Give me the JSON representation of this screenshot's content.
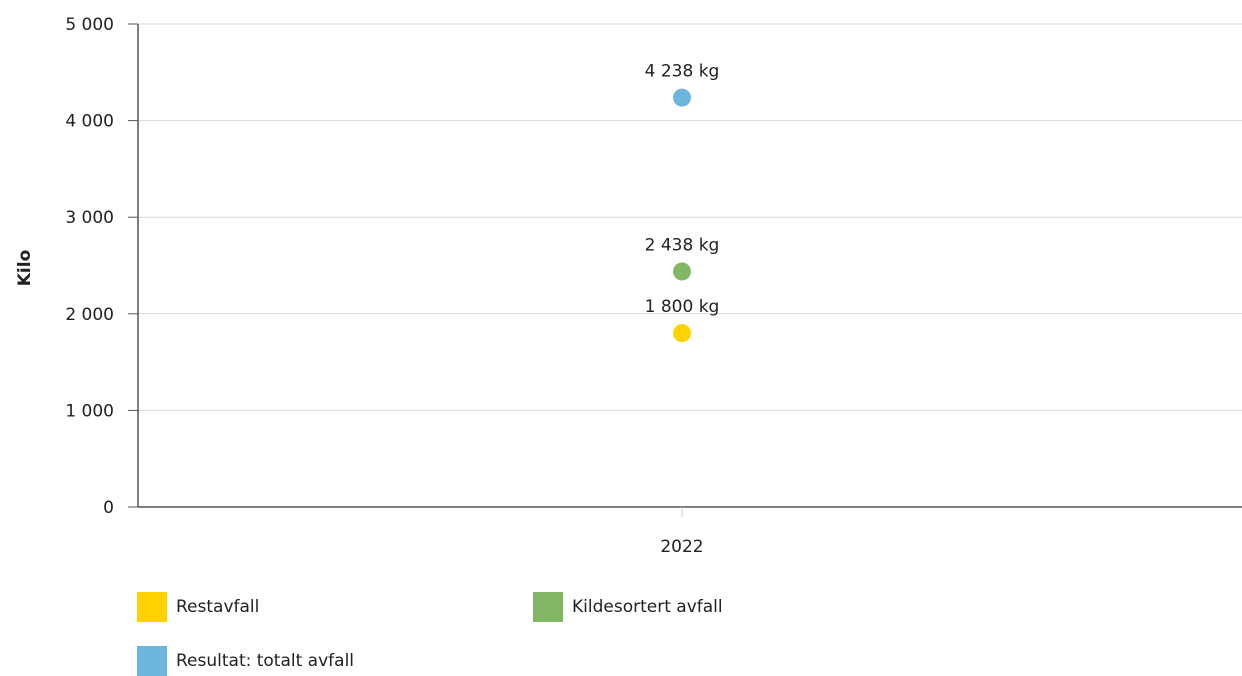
{
  "chart_data": {
    "type": "scatter",
    "title": "",
    "ylabel": "Kilo",
    "xlabel": "",
    "categories": [
      "2022"
    ],
    "ylim": [
      0,
      5000
    ],
    "yticks": [
      0,
      1000,
      2000,
      3000,
      4000,
      5000
    ],
    "ytick_labels": [
      "0",
      "1 000",
      "2 000",
      "3 000",
      "4 000",
      "5 000"
    ],
    "grid": true,
    "legend_position": "bottom",
    "series": [
      {
        "name": "Restavfall",
        "color": "#ffd200",
        "values": [
          1800
        ],
        "labels": [
          "1 800 kg"
        ]
      },
      {
        "name": "Kildesortert avfall",
        "color": "#82b865",
        "values": [
          2438
        ],
        "labels": [
          "2 438 kg"
        ]
      },
      {
        "name": "Resultat: totalt avfall",
        "color": "#6bb6dd",
        "values": [
          4238
        ],
        "labels": [
          "4 238 kg"
        ]
      }
    ]
  }
}
